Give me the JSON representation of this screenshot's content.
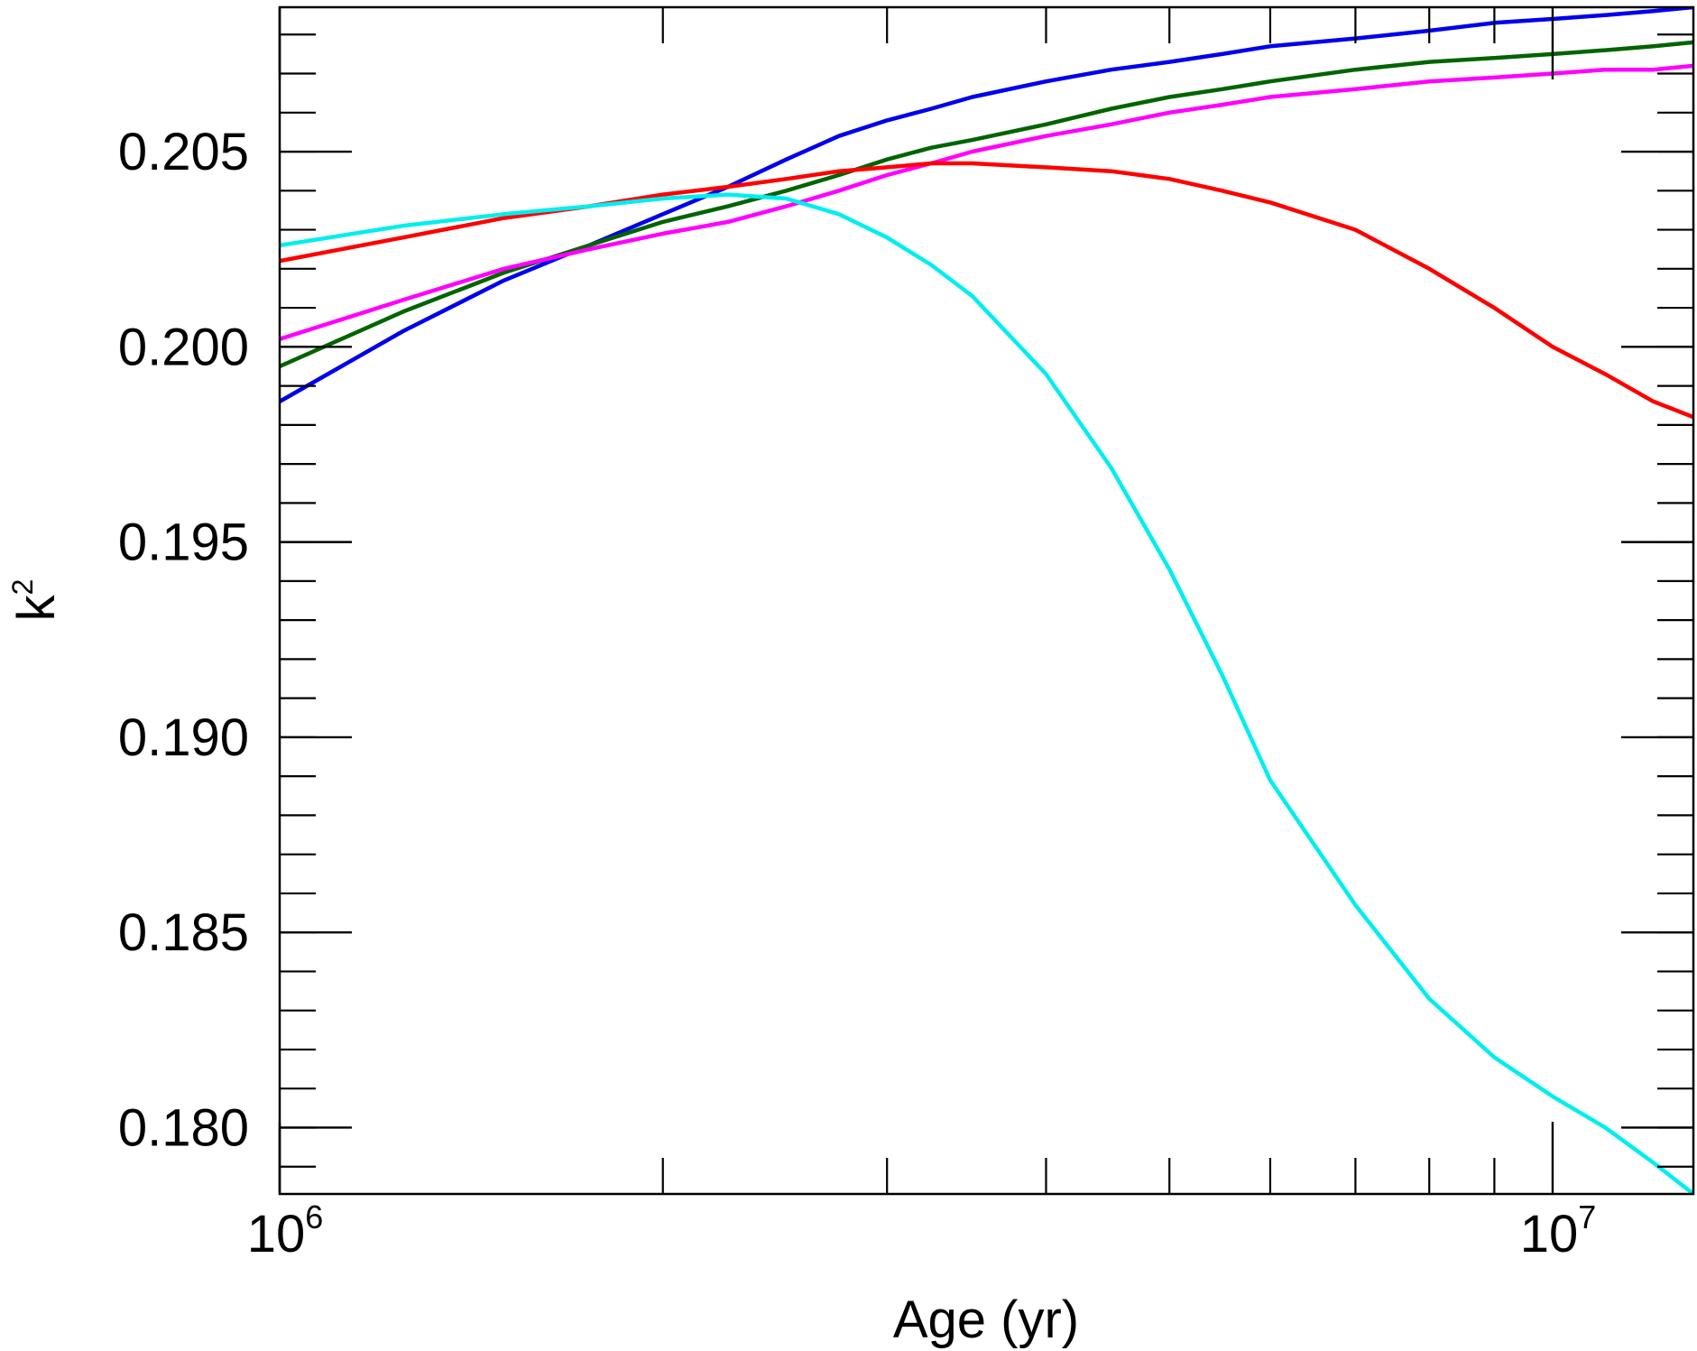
{
  "chart_data": {
    "type": "line",
    "title": "",
    "xlabel": "Age (yr)",
    "ylabel": "k",
    "ylabel_superscript": "2",
    "xscale": "log",
    "xlim": [
      1000000,
      12900000
    ],
    "ylim": [
      0.1783,
      0.2087
    ],
    "x_major_ticks": [
      {
        "value": 1000000,
        "base": "10",
        "exp": "6"
      },
      {
        "value": 10000000,
        "base": "10",
        "exp": "7"
      }
    ],
    "x_minor_ticks": [
      2000000,
      3000000,
      4000000,
      5000000,
      6000000,
      7000000,
      8000000,
      9000000
    ],
    "y_major_ticks": [
      {
        "value": 0.18,
        "label": "0.180"
      },
      {
        "value": 0.185,
        "label": "0.185"
      },
      {
        "value": 0.19,
        "label": "0.190"
      },
      {
        "value": 0.195,
        "label": "0.195"
      },
      {
        "value": 0.2,
        "label": "0.200"
      },
      {
        "value": 0.205,
        "label": "0.205"
      }
    ],
    "y_minor_step": 0.001,
    "grid": false,
    "legend": "none",
    "x": [
      1000000,
      1250000,
      1500000,
      1750000,
      2000000,
      2250000,
      2500000,
      2750000,
      3000000,
      3250000,
      3500000,
      4000000,
      4500000,
      5000000,
      5500000,
      6000000,
      7000000,
      8000000,
      9000000,
      10000000,
      11000000,
      12000000,
      12900000
    ],
    "series": [
      {
        "name": "blue",
        "color": "#0000ee",
        "values": [
          0.1986,
          0.2004,
          0.2017,
          0.2026,
          0.2034,
          0.2041,
          0.2048,
          0.2054,
          0.2058,
          0.2061,
          0.2064,
          0.2068,
          0.2071,
          0.2073,
          0.2075,
          0.2077,
          0.2079,
          0.2081,
          0.2083,
          0.2084,
          0.2085,
          0.2086,
          0.2087
        ]
      },
      {
        "name": "green",
        "color": "#006400",
        "values": [
          0.1995,
          0.2009,
          0.2019,
          0.2026,
          0.2032,
          0.2036,
          0.204,
          0.2044,
          0.2048,
          0.2051,
          0.2053,
          0.2057,
          0.2061,
          0.2064,
          0.2066,
          0.2068,
          0.2071,
          0.2073,
          0.2074,
          0.2075,
          0.2076,
          0.2077,
          0.2078
        ]
      },
      {
        "name": "magenta",
        "color": "#ff00ff",
        "values": [
          0.2002,
          0.2012,
          0.202,
          0.2025,
          0.2029,
          0.2032,
          0.2036,
          0.204,
          0.2044,
          0.2047,
          0.205,
          0.2054,
          0.2057,
          0.206,
          0.2062,
          0.2064,
          0.2066,
          0.2068,
          0.2069,
          0.207,
          0.2071,
          0.2071,
          0.2072
        ]
      },
      {
        "name": "red",
        "color": "#ff0000",
        "values": [
          0.2022,
          0.2028,
          0.2033,
          0.2036,
          0.2039,
          0.2041,
          0.2043,
          0.2045,
          0.2046,
          0.2047,
          0.2047,
          0.2046,
          0.2045,
          0.2043,
          0.204,
          0.2037,
          0.203,
          0.202,
          0.201,
          0.2,
          0.1993,
          0.1986,
          0.1982
        ]
      },
      {
        "name": "cyan",
        "color": "#00eeee",
        "values": [
          0.2026,
          0.2031,
          0.2034,
          0.2036,
          0.2038,
          0.2039,
          0.2038,
          0.2034,
          0.2028,
          0.2021,
          0.2013,
          0.1993,
          0.1969,
          0.1943,
          0.1916,
          0.1889,
          0.1857,
          0.1833,
          0.1818,
          0.1808,
          0.18,
          0.1791,
          0.1783
        ]
      }
    ]
  }
}
